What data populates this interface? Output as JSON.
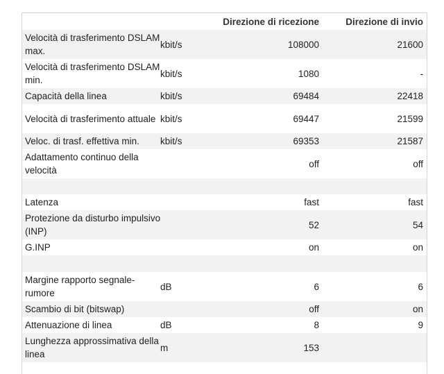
{
  "header": {
    "col_rx": "Direzione di ricezione",
    "col_tx": "Direzione di invio"
  },
  "rows": [
    {
      "label": "Velocità di trasferimento DSLAM max.",
      "unit": "kbit/s",
      "rx": "108000",
      "tx": "21600"
    },
    {
      "label": "Velocità di trasferimento DSLAM min.",
      "unit": "kbit/s",
      "rx": "1080",
      "tx": "-"
    },
    {
      "label": "Capacità della linea",
      "unit": "kbit/s",
      "rx": "69484",
      "tx": "22418"
    },
    {
      "label": "Velocità di trasferimento attuale",
      "unit": "kbit/s",
      "rx": "69447",
      "tx": "21599"
    },
    {
      "label": "Veloc. di trasf. effettiva min.",
      "unit": "kbit/s",
      "rx": "69353",
      "tx": "21587"
    },
    {
      "label": "Adattamento continuo della velocità",
      "unit": "",
      "rx": "off",
      "tx": "off"
    },
    {
      "label": "",
      "unit": "",
      "rx": "",
      "tx": ""
    },
    {
      "label": "Latenza",
      "unit": "",
      "rx": "fast",
      "tx": "fast"
    },
    {
      "label": "Protezione da disturbo impulsivo (INP)",
      "unit": "",
      "rx": "52",
      "tx": "54"
    },
    {
      "label": "G.INP",
      "unit": "",
      "rx": "on",
      "tx": "on"
    },
    {
      "label": "",
      "unit": "",
      "rx": "",
      "tx": ""
    },
    {
      "label": "Margine rapporto segnale-rumore",
      "unit": "dB",
      "rx": "6",
      "tx": "6"
    },
    {
      "label": "Scambio di bit (bitswap)",
      "unit": "",
      "rx": "off",
      "tx": "on"
    },
    {
      "label": "Attenuazione di linea",
      "unit": "dB",
      "rx": "8",
      "tx": "9"
    },
    {
      "label": "Lunghezza approssimativa della linea",
      "unit": "m",
      "rx": "153",
      "tx": ""
    }
  ]
}
